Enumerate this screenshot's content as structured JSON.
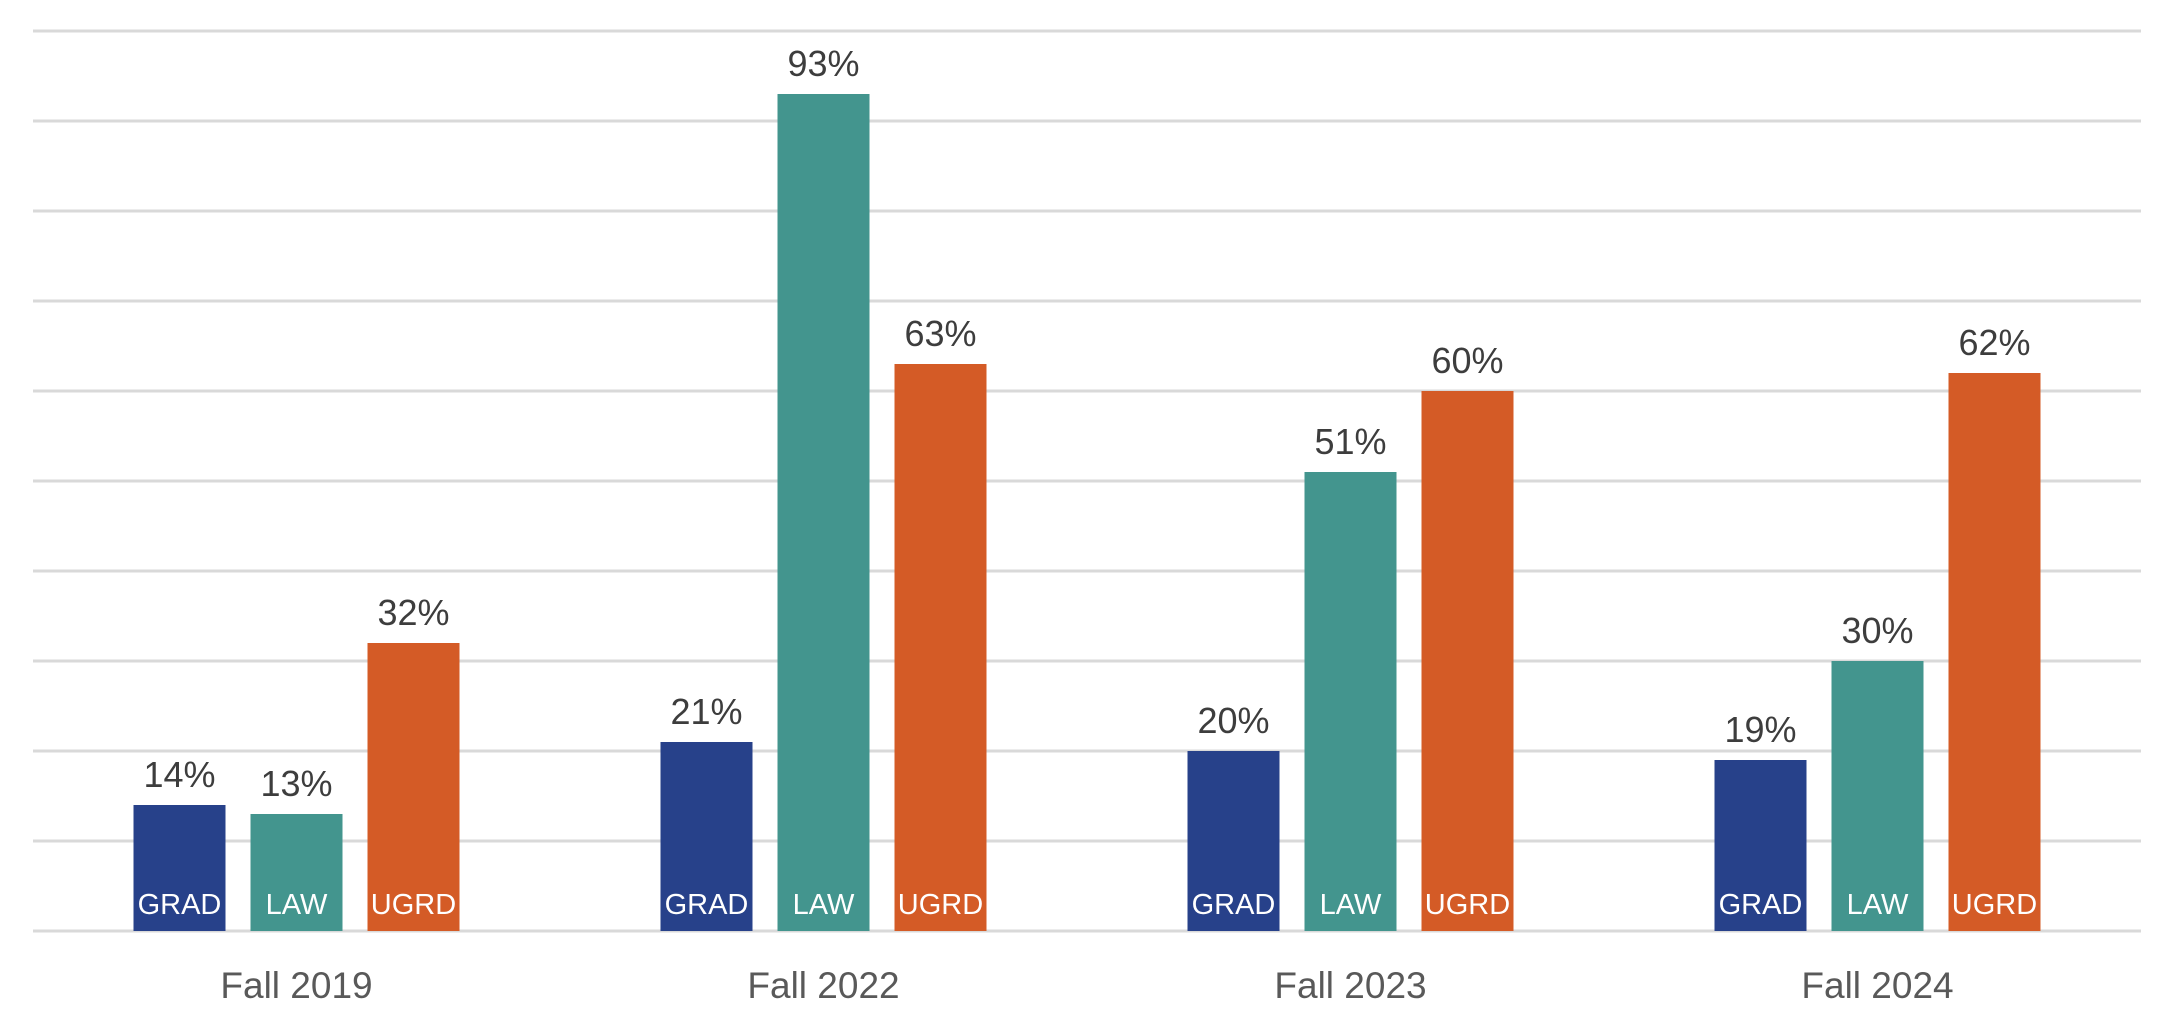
{
  "chart_data": {
    "type": "bar",
    "title": "",
    "xlabel": "",
    "ylabel": "",
    "ylim": [
      0,
      100
    ],
    "grid": true,
    "legend": "none",
    "categories": [
      "Fall 2019",
      "Fall 2022",
      "Fall 2023",
      "Fall 2024"
    ],
    "series": [
      {
        "name": "GRAD",
        "color": "#27418a",
        "values": [
          14,
          21,
          20,
          19
        ],
        "labels": [
          "14%",
          "21%",
          "20%",
          "19%"
        ]
      },
      {
        "name": "LAW",
        "color": "#43958e",
        "values": [
          13,
          93,
          51,
          30
        ],
        "labels": [
          "13%",
          "93%",
          "51%",
          "30%"
        ]
      },
      {
        "name": "UGRD",
        "color": "#d45b26",
        "values": [
          32,
          63,
          60,
          62
        ],
        "labels": [
          "32%",
          "63%",
          "60%",
          "62%"
        ]
      }
    ]
  }
}
